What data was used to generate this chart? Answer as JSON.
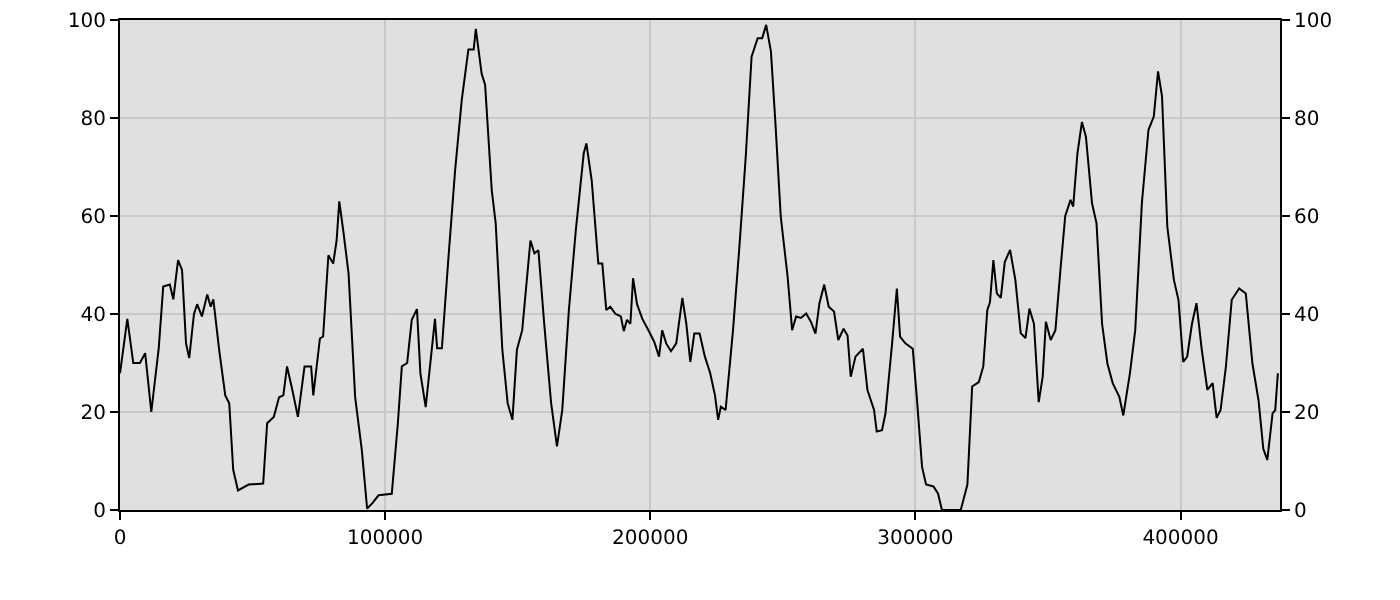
{
  "chart_data": {
    "type": "line",
    "grid": true,
    "marker": "none",
    "line_style": "solid",
    "legend": false,
    "xlim": [
      0,
      437500
    ],
    "xticks": [
      0,
      100000,
      200000,
      300000,
      400000
    ],
    "ylim": [
      0,
      100
    ],
    "yticks": [
      0,
      20,
      40,
      60,
      80,
      100
    ],
    "y2lim": [
      0,
      100
    ],
    "y2ticks": [
      0,
      20,
      40,
      60,
      80,
      100
    ],
    "series": [
      {
        "color": "#000000",
        "x": [
          0,
          2764,
          5000,
          7500,
          9500,
          11800,
          14600,
          16300,
          18800,
          20100,
          21900,
          23400,
          24900,
          26100,
          27900,
          29100,
          30900,
          32900,
          34200,
          35200,
          37400,
          39700,
          41200,
          42700,
          44500,
          48500,
          54000,
          55500,
          58000,
          60000,
          61600,
          63000,
          65000,
          67100,
          69600,
          72100,
          72900,
          75400,
          76600,
          78600,
          80400,
          81700,
          82700,
          84200,
          86200,
          88700,
          91200,
          93200,
          95200,
          97500,
          102500,
          104800,
          106300,
          108300,
          110050,
          112000,
          113300,
          115300,
          118800,
          119600,
          121400,
          123900,
          126400,
          128900,
          131400,
          133400,
          134200,
          136400,
          137700,
          140200,
          141700,
          144200,
          146200,
          148000,
          149700,
          151700,
          154800,
          156300,
          157800,
          160000,
          162600,
          164800,
          166800,
          169300,
          171900,
          174900,
          175900,
          177900,
          180400,
          181900,
          183400,
          184900,
          186900,
          188900,
          190000,
          191200,
          192500,
          193500,
          195000,
          197000,
          199000,
          200300,
          201500,
          203300,
          204500,
          206000,
          207800,
          209800,
          212100,
          213600,
          215100,
          216600,
          218600,
          220600,
          222600,
          224400,
          225600,
          226600,
          228400,
          231200,
          233700,
          236000,
          238200,
          240500,
          242200,
          243700,
          245500,
          247200,
          249200,
          251800,
          253500,
          255000,
          256800,
          258800,
          260600,
          262300,
          263800,
          265600,
          267300,
          269300,
          270900,
          272900,
          274400,
          275600,
          277400,
          280200,
          281900,
          284400,
          285400,
          287400,
          288700,
          291200,
          293000,
          294200,
          296200,
          299000,
          300500,
          302500,
          304000,
          306800,
          308500,
          310000,
          317100,
          319600,
          321400,
          323900,
          325600,
          327100,
          328100,
          329400,
          330700,
          332200,
          333700,
          335700,
          337700,
          339700,
          341500,
          343000,
          344700,
          346500,
          348000,
          349200,
          351000,
          352800,
          354800,
          356500,
          358500,
          359500,
          361100,
          362800,
          364300,
          366600,
          368300,
          370400,
          372400,
          374400,
          376900,
          378400,
          380900,
          382900,
          385400,
          387900,
          389900,
          391500,
          393000,
          395000,
          397500,
          399200,
          401000,
          402500,
          404300,
          406000,
          408000,
          410100,
          412100,
          413600,
          415100,
          417100,
          419300,
          422100,
          424600,
          427100,
          429400,
          431200,
          432700,
          434700,
          435700,
          436700
        ],
        "values": [
          27.9,
          39,
          30,
          30,
          32,
          20,
          33,
          45.6,
          46,
          43,
          51,
          49,
          34,
          31,
          40,
          42,
          39.5,
          44,
          41.5,
          43,
          32.7,
          23.4,
          21.8,
          8.2,
          4,
          5.2,
          5.4,
          17.7,
          19,
          23,
          23.4,
          29.3,
          24.5,
          19,
          29.3,
          29.3,
          23.4,
          35,
          35.4,
          52,
          50.3,
          55,
          63,
          57,
          48.3,
          23,
          12.2,
          0.3,
          1.4,
          3,
          3.3,
          17.7,
          29.3,
          30,
          38.8,
          41,
          27.9,
          21,
          39,
          33,
          33,
          51.7,
          69.4,
          83.7,
          94,
          94,
          98.2,
          89,
          86.8,
          65.3,
          58.5,
          32.7,
          21.8,
          18.4,
          32.7,
          36.7,
          55,
          52.4,
          53,
          38,
          21.8,
          13,
          20.4,
          40.8,
          57,
          72.8,
          74.8,
          67.3,
          50.3,
          50.3,
          40.8,
          41.5,
          40,
          39.5,
          36.5,
          38.8,
          38,
          47.3,
          42,
          39,
          37,
          35.6,
          34.3,
          31.3,
          36.7,
          34,
          32.4,
          34,
          43.3,
          38,
          30.2,
          36,
          36,
          31.3,
          27.9,
          23.4,
          18.4,
          21.1,
          20.4,
          36.7,
          54.4,
          72.1,
          92.5,
          96.3,
          96.3,
          99,
          93.6,
          78.9,
          59.9,
          47.6,
          36.7,
          39.5,
          39.2,
          40.1,
          38.4,
          36,
          42.2,
          46,
          41.5,
          40.5,
          34.7,
          37,
          35.6,
          27.2,
          31.3,
          32.9,
          24.5,
          20.4,
          16,
          16.3,
          19.7,
          34,
          45.2,
          35.4,
          34,
          32.9,
          23.1,
          8.8,
          5.2,
          4.8,
          3.4,
          0,
          0,
          5.2,
          25.2,
          26.1,
          29.3,
          40.8,
          42.4,
          51,
          44.2,
          43.3,
          50.6,
          53.1,
          46.9,
          36.1,
          35.1,
          41.1,
          38,
          22,
          27.2,
          38.4,
          34.7,
          36.7,
          49.7,
          60,
          63.3,
          61.9,
          72.8,
          79.2,
          76.2,
          62.6,
          58.5,
          38,
          29.9,
          25.9,
          23.1,
          19.3,
          27.9,
          36.7,
          62.6,
          77.6,
          80.3,
          89.5,
          84.4,
          57.8,
          46.9,
          42.9,
          30.2,
          31.3,
          38,
          42.2,
          32.7,
          24.5,
          25.9,
          18.8,
          20.4,
          29.3,
          42.9,
          45.2,
          44.2,
          29.9,
          22.4,
          12.5,
          10.2,
          19.7,
          20.4,
          27.9
        ]
      }
    ]
  }
}
